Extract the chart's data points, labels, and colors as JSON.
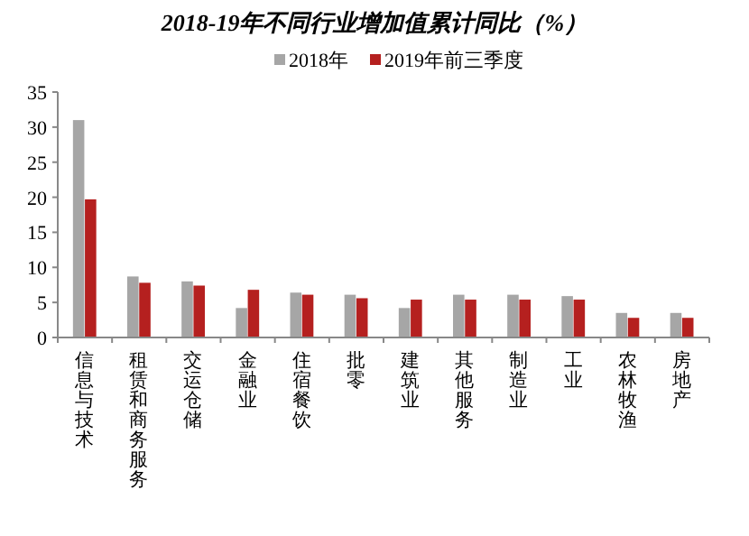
{
  "chart_data": {
    "type": "bar",
    "title": "2018-19年不同行业增加值累计同比（%）",
    "categories": [
      "信息与技术",
      "租赁和商务服务",
      "交运仓储",
      "金融业",
      "住宿餐饮",
      "批零",
      "建筑业",
      "其他服务",
      "制造业",
      "工业",
      "农林牧渔",
      "房地产"
    ],
    "series": [
      {
        "name": "2018年",
        "color": "#a6a6a6",
        "values": [
          31.0,
          8.7,
          8.0,
          4.2,
          6.4,
          6.1,
          4.2,
          6.1,
          6.1,
          5.9,
          3.5,
          3.5
        ]
      },
      {
        "name": "2019年前三季度",
        "color": "#b5201f",
        "values": [
          19.7,
          7.8,
          7.4,
          6.8,
          6.1,
          5.6,
          5.4,
          5.4,
          5.4,
          5.4,
          2.8,
          2.8
        ]
      }
    ],
    "ylim": [
      0,
      35
    ],
    "yticks": [
      0,
      5,
      10,
      15,
      20,
      25,
      30,
      35
    ],
    "grid": false,
    "legend": "top"
  }
}
